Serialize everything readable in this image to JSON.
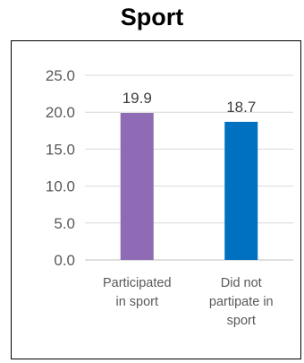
{
  "chart_data": {
    "type": "bar",
    "title": "Sport",
    "categories": [
      [
        "Participated",
        "in sport"
      ],
      [
        "Did not",
        "partipate in",
        "sport"
      ]
    ],
    "values": [
      19.9,
      18.7
    ],
    "value_labels": [
      "19.9",
      "18.7"
    ],
    "bar_colors": [
      "#8e6bb4",
      "#0070c0"
    ],
    "yticks": [
      "0.0",
      "5.0",
      "10.0",
      "15.0",
      "20.0",
      "25.0"
    ],
    "ylim": [
      0,
      25
    ],
    "grid": true,
    "xlabel": "",
    "ylabel": ""
  }
}
